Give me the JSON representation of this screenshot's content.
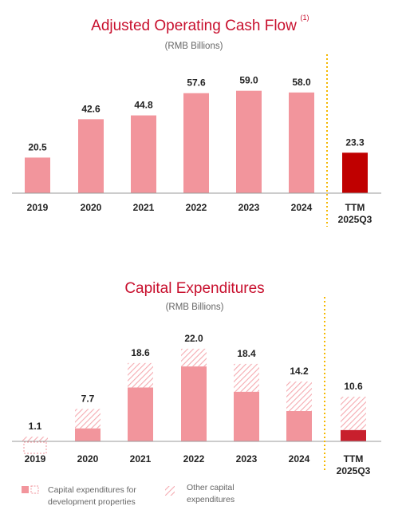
{
  "colors": {
    "accent": "#c8102e",
    "bar_pink": "#f2959c",
    "ttm_red": "#c00000",
    "ttm_red2": "#c81f2d",
    "hatch": "#f5aab0",
    "divider": "#f5b800"
  },
  "chart_data": [
    {
      "type": "bar",
      "title": "Adjusted Operating Cash Flow",
      "title_note": "(1)",
      "subtitle": "(RMB Billions)",
      "categories": [
        "2019",
        "2020",
        "2021",
        "2022",
        "2023",
        "2024",
        "TTM 2025Q3"
      ],
      "category_lines": [
        [
          "2019"
        ],
        [
          "2020"
        ],
        [
          "2021"
        ],
        [
          "2022"
        ],
        [
          "2023"
        ],
        [
          "2024"
        ],
        [
          "TTM",
          "2025Q3"
        ]
      ],
      "values": [
        20.5,
        42.6,
        44.8,
        57.6,
        59.0,
        58.0,
        23.3
      ],
      "labels": [
        "20.5",
        "42.6",
        "44.8",
        "57.6",
        "59.0",
        "58.0",
        "23.3"
      ],
      "highlight_index": 6,
      "ylim": [
        0,
        63
      ],
      "grid": false
    },
    {
      "type": "bar",
      "stacked": true,
      "title": "Capital Expenditures",
      "subtitle": "(RMB Billions)",
      "categories": [
        "2019",
        "2020",
        "2021",
        "2022",
        "2023",
        "2024",
        "TTM 2025Q3"
      ],
      "category_lines": [
        [
          "2019"
        ],
        [
          "2020"
        ],
        [
          "2021"
        ],
        [
          "2022"
        ],
        [
          "2023"
        ],
        [
          "2024"
        ],
        [
          "TTM",
          "2025Q3"
        ]
      ],
      "totals": [
        1.1,
        7.7,
        18.6,
        22.0,
        18.4,
        14.2,
        10.6
      ],
      "total_labels": [
        "1.1",
        "7.7",
        "18.6",
        "22.0",
        "18.4",
        "14.2",
        "10.6"
      ],
      "series": [
        {
          "name": "Capital expenditures for development properties",
          "values": [
            0.0,
            3.1,
            12.8,
            17.8,
            11.8,
            7.2,
            2.7
          ]
        },
        {
          "name": "Other capital expenditures",
          "values": [
            1.1,
            4.6,
            5.8,
            4.2,
            6.6,
            7.0,
            7.9
          ]
        }
      ],
      "highlight_index": 6,
      "ylim": [
        0,
        23.5
      ],
      "grid": false,
      "legend": {
        "position": "bottom-left",
        "items": [
          {
            "lines": [
              "Capital expenditures for",
              "development properties"
            ]
          },
          {
            "lines": [
              "Other capital",
              "expenditures"
            ]
          }
        ]
      }
    }
  ]
}
